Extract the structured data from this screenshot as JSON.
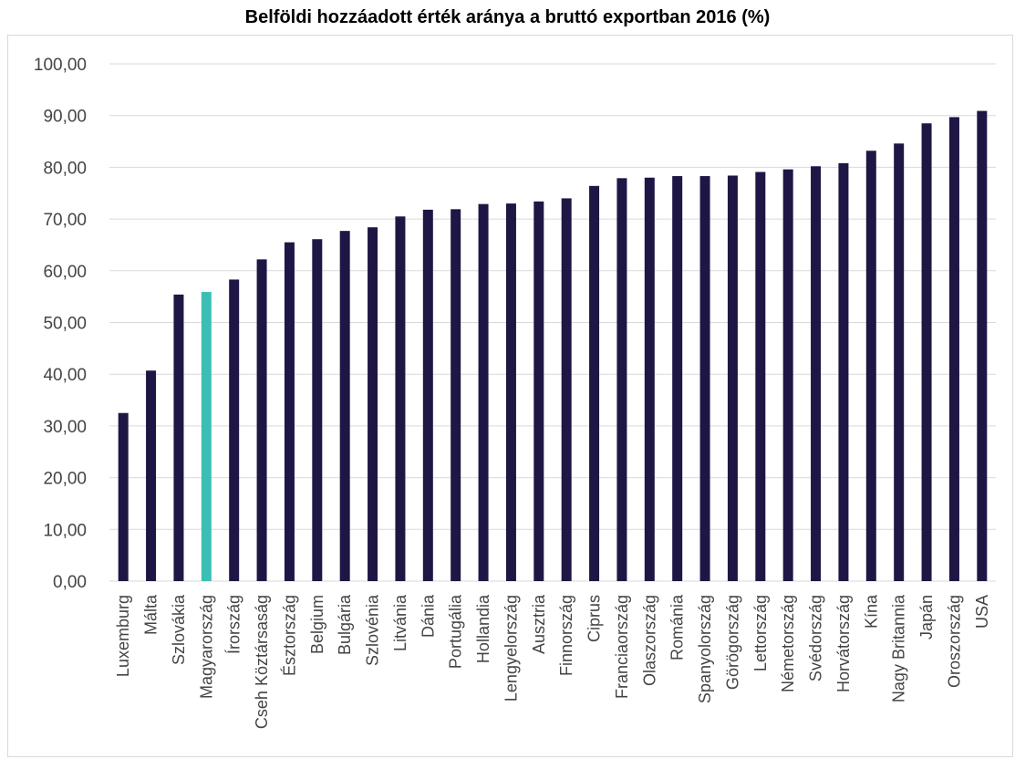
{
  "chart_data": {
    "type": "bar",
    "title": "Belföldi hozzáadott érték aránya a bruttó exportban 2016 (%)",
    "xlabel": "",
    "ylabel": "",
    "ylim": [
      0,
      100
    ],
    "yticks": [
      "0,00",
      "10,00",
      "20,00",
      "30,00",
      "40,00",
      "50,00",
      "60,00",
      "70,00",
      "80,00",
      "90,00",
      "100,00"
    ],
    "grid": true,
    "legend": "none",
    "categories": [
      "Luxemburg",
      "Málta",
      "Szlovákia",
      "Magyarország",
      "Írország",
      "Cseh Köztársaság",
      "Észtország",
      "Belgium",
      "Bulgária",
      "Szlovénia",
      "Litvánia",
      "Dánia",
      "Portugália",
      "Hollandia",
      "Lengyelország",
      "Ausztria",
      "Finnország",
      "Ciprus",
      "Franciaország",
      "Olaszország",
      "Románia",
      "Spanyolország",
      "Görögország",
      "Lettország",
      "Németország",
      "Svédország",
      "Horvátország",
      "Kína",
      "Nagy Britannia",
      "Japán",
      "Oroszország",
      "USA"
    ],
    "values": [
      32.5,
      40.7,
      55.4,
      55.9,
      58.3,
      62.2,
      65.5,
      66.1,
      67.7,
      68.4,
      70.5,
      71.8,
      71.9,
      72.9,
      73.0,
      73.4,
      74.0,
      76.4,
      77.9,
      78.0,
      78.3,
      78.3,
      78.4,
      79.1,
      79.6,
      80.2,
      80.8,
      83.2,
      84.6,
      88.5,
      89.7,
      90.9
    ],
    "highlight_category": "Magyarország",
    "colors": {
      "bar": "#1f1646",
      "highlight": "#3bbfb5",
      "grid": "#d9d9d9"
    }
  }
}
